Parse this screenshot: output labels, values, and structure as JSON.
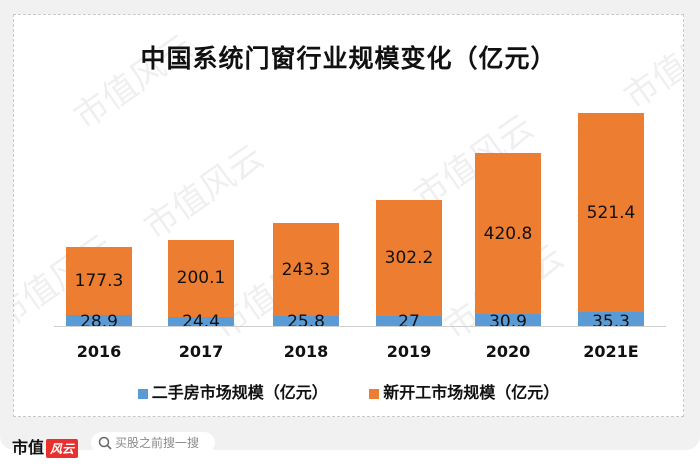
{
  "title": "中国系统门窗行业规模变化（亿元）",
  "colors": {
    "secondhand": "#5b9bd5",
    "newstart": "#ed7d31",
    "background": "#f1f1f1"
  },
  "legend": {
    "secondhand": "二手房市场规模（亿元）",
    "newstart": "新开工市场规模（亿元）"
  },
  "watermark": "市值风云",
  "footer": {
    "brand_text": "市值",
    "brand_badge": "风云",
    "search_placeholder": "买股之前搜一搜",
    "search_icon": "search-icon"
  },
  "bars": [
    {
      "year": "2016",
      "secondhand": "28.9",
      "newstart": "177.3"
    },
    {
      "year": "2017",
      "secondhand": "24.4",
      "newstart": "200.1"
    },
    {
      "year": "2018",
      "secondhand": "25.8",
      "newstart": "243.3"
    },
    {
      "year": "2019",
      "secondhand": "27",
      "newstart": "302.2"
    },
    {
      "year": "2020",
      "secondhand": "30.9",
      "newstart": "420.8"
    },
    {
      "year": "2021E",
      "secondhand": "35.3",
      "newstart": "521.4"
    }
  ],
  "chart_data": {
    "type": "bar",
    "stacked": true,
    "title": "中国系统门窗行业规模变化（亿元）",
    "categories": [
      "2016",
      "2017",
      "2018",
      "2019",
      "2020",
      "2021E"
    ],
    "series": [
      {
        "name": "二手房市场规模（亿元）",
        "color": "#5b9bd5",
        "values": [
          28.9,
          24.4,
          25.8,
          27,
          30.9,
          35.3
        ]
      },
      {
        "name": "新开工市场规模（亿元）",
        "color": "#ed7d31",
        "values": [
          177.3,
          200.1,
          243.3,
          302.2,
          420.8,
          521.4
        ]
      }
    ],
    "xlabel": "",
    "ylabel": "",
    "y_axis_visible": false,
    "grid": false,
    "legend_position": "bottom",
    "data_labels": true
  }
}
